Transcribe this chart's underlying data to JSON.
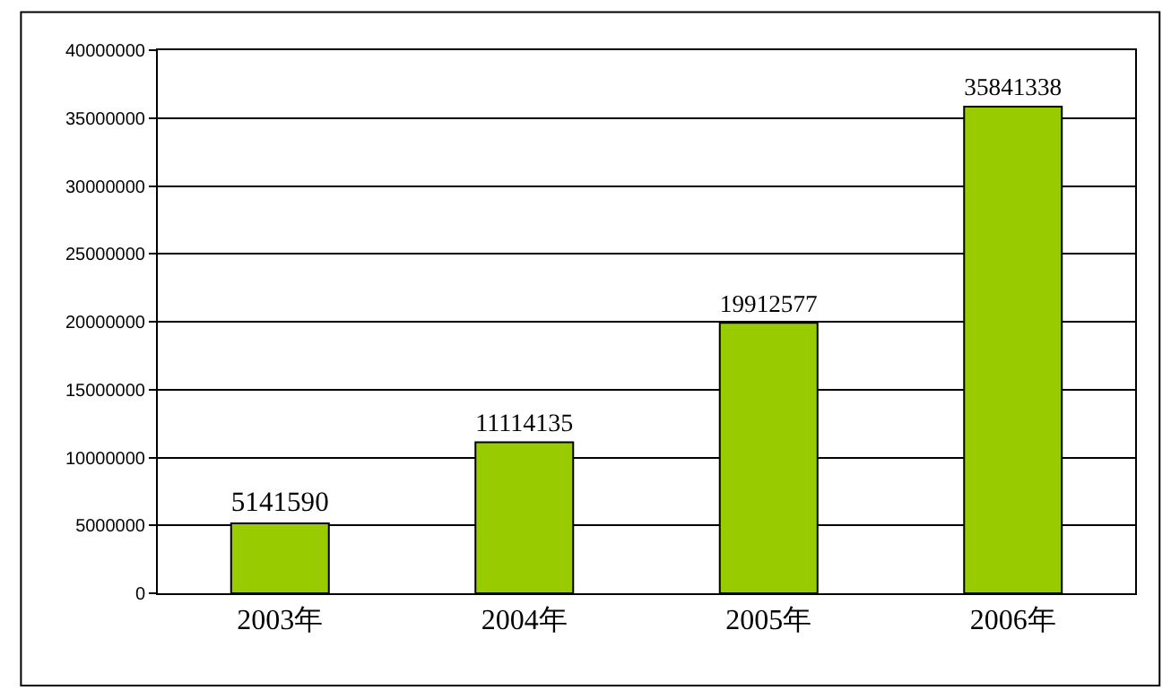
{
  "chart_data": {
    "type": "bar",
    "categories": [
      "2003年",
      "2004年",
      "2005年",
      "2006年"
    ],
    "values": [
      5141590,
      11114135,
      19912577,
      35841338
    ],
    "color": "#99cc00",
    "ylim": [
      0,
      40000000
    ],
    "yticks": [
      0,
      5000000,
      10000000,
      15000000,
      20000000,
      25000000,
      30000000,
      35000000,
      40000000
    ],
    "grid": "y",
    "data_labels": true
  }
}
